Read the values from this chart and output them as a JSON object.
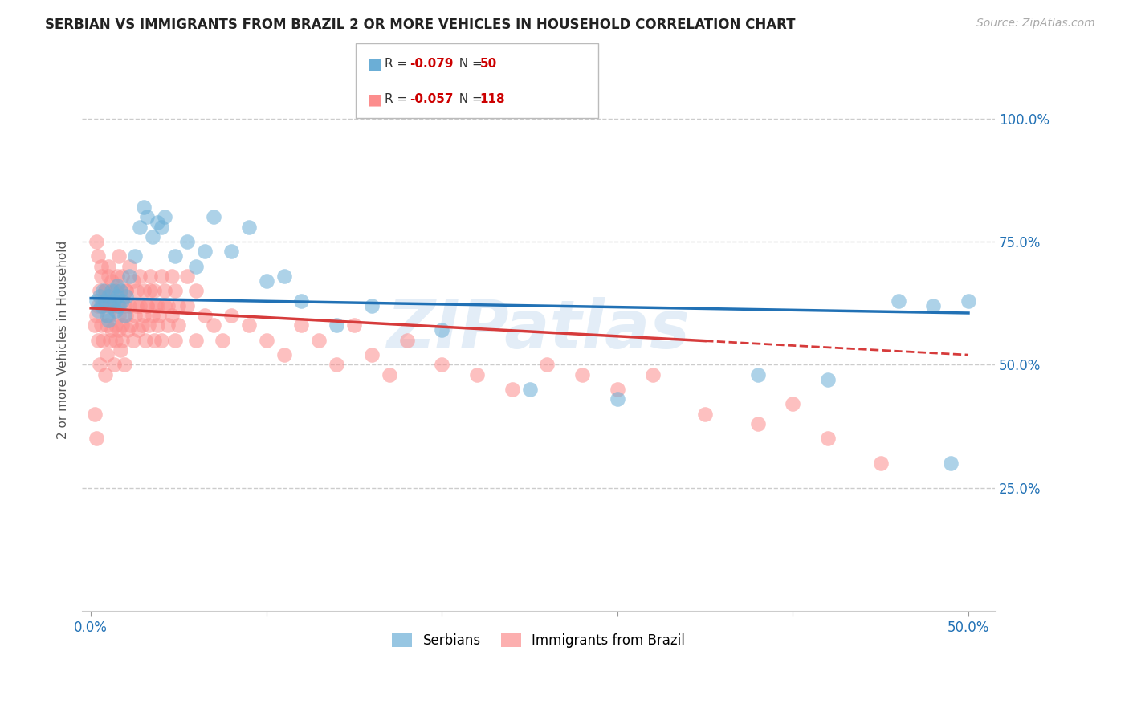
{
  "title": "SERBIAN VS IMMIGRANTS FROM BRAZIL 2 OR MORE VEHICLES IN HOUSEHOLD CORRELATION CHART",
  "source": "Source: ZipAtlas.com",
  "ylabel": "2 or more Vehicles in Household",
  "xlim": [
    0.0,
    0.5
  ],
  "ylim": [
    0.0,
    1.05
  ],
  "xtick_values": [
    0.0,
    0.1,
    0.2,
    0.3,
    0.4,
    0.5
  ],
  "xtick_labels": [
    "0.0%",
    "",
    "",
    "",
    "",
    "50.0%"
  ],
  "ytick_values": [
    0.25,
    0.5,
    0.75,
    1.0
  ],
  "ytick_labels": [
    "25.0%",
    "50.0%",
    "75.0%",
    "100.0%"
  ],
  "serbian_color": "#6baed6",
  "brazil_color": "#fc8d8d",
  "trendline_serbian_color": "#2171b5",
  "trendline_brazil_color": "#d63b3b",
  "watermark": "ZIPatlas",
  "legend_serbian_text": "R = -0.079   N = 50",
  "legend_brazil_text": "R = -0.057   N = 118",
  "serbian_x": [
    0.003,
    0.004,
    0.005,
    0.006,
    0.007,
    0.008,
    0.009,
    0.01,
    0.011,
    0.012,
    0.013,
    0.014,
    0.015,
    0.016,
    0.017,
    0.018,
    0.019,
    0.02,
    0.022,
    0.025,
    0.028,
    0.03,
    0.032,
    0.035,
    0.038,
    0.04,
    0.042,
    0.048,
    0.055,
    0.06,
    0.065,
    0.07,
    0.08,
    0.09,
    0.1,
    0.11,
    0.12,
    0.14,
    0.16,
    0.2,
    0.25,
    0.3,
    0.38,
    0.42,
    0.46,
    0.48,
    0.49,
    0.5,
    0.01,
    0.015
  ],
  "serbian_y": [
    0.63,
    0.61,
    0.64,
    0.62,
    0.65,
    0.63,
    0.6,
    0.64,
    0.62,
    0.65,
    0.63,
    0.61,
    0.64,
    0.62,
    0.65,
    0.63,
    0.6,
    0.64,
    0.68,
    0.72,
    0.78,
    0.82,
    0.8,
    0.76,
    0.79,
    0.78,
    0.8,
    0.72,
    0.75,
    0.7,
    0.73,
    0.8,
    0.73,
    0.78,
    0.67,
    0.68,
    0.63,
    0.58,
    0.62,
    0.57,
    0.45,
    0.43,
    0.48,
    0.47,
    0.63,
    0.62,
    0.3,
    0.63,
    0.59,
    0.66
  ],
  "brazil_x": [
    0.002,
    0.003,
    0.003,
    0.004,
    0.004,
    0.005,
    0.005,
    0.006,
    0.006,
    0.007,
    0.007,
    0.008,
    0.008,
    0.009,
    0.009,
    0.01,
    0.01,
    0.011,
    0.011,
    0.012,
    0.012,
    0.013,
    0.013,
    0.014,
    0.014,
    0.015,
    0.015,
    0.016,
    0.016,
    0.017,
    0.017,
    0.018,
    0.018,
    0.019,
    0.019,
    0.02,
    0.02,
    0.021,
    0.022,
    0.023,
    0.024,
    0.025,
    0.026,
    0.027,
    0.028,
    0.029,
    0.03,
    0.031,
    0.032,
    0.033,
    0.034,
    0.035,
    0.036,
    0.037,
    0.038,
    0.039,
    0.04,
    0.042,
    0.044,
    0.046,
    0.048,
    0.05,
    0.055,
    0.06,
    0.065,
    0.07,
    0.075,
    0.08,
    0.09,
    0.1,
    0.11,
    0.12,
    0.13,
    0.14,
    0.15,
    0.16,
    0.17,
    0.18,
    0.2,
    0.22,
    0.24,
    0.26,
    0.28,
    0.3,
    0.32,
    0.35,
    0.38,
    0.4,
    0.42,
    0.45,
    0.004,
    0.006,
    0.008,
    0.01,
    0.012,
    0.014,
    0.016,
    0.018,
    0.02,
    0.022,
    0.024,
    0.026,
    0.028,
    0.03,
    0.032,
    0.034,
    0.036,
    0.038,
    0.04,
    0.042,
    0.044,
    0.046,
    0.048,
    0.05,
    0.055,
    0.06,
    0.002,
    0.003
  ],
  "brazil_y": [
    0.58,
    0.75,
    0.6,
    0.62,
    0.55,
    0.65,
    0.5,
    0.58,
    0.7,
    0.55,
    0.62,
    0.48,
    0.65,
    0.58,
    0.52,
    0.6,
    0.68,
    0.55,
    0.63,
    0.57,
    0.62,
    0.5,
    0.65,
    0.58,
    0.55,
    0.62,
    0.68,
    0.57,
    0.6,
    0.53,
    0.65,
    0.58,
    0.55,
    0.62,
    0.5,
    0.6,
    0.65,
    0.57,
    0.62,
    0.58,
    0.55,
    0.6,
    0.65,
    0.57,
    0.62,
    0.58,
    0.6,
    0.55,
    0.62,
    0.58,
    0.65,
    0.6,
    0.55,
    0.62,
    0.58,
    0.6,
    0.55,
    0.62,
    0.58,
    0.6,
    0.55,
    0.58,
    0.62,
    0.55,
    0.6,
    0.58,
    0.55,
    0.6,
    0.58,
    0.55,
    0.52,
    0.58,
    0.55,
    0.5,
    0.58,
    0.52,
    0.48,
    0.55,
    0.5,
    0.48,
    0.45,
    0.5,
    0.48,
    0.45,
    0.48,
    0.4,
    0.38,
    0.42,
    0.35,
    0.3,
    0.72,
    0.68,
    0.65,
    0.7,
    0.67,
    0.65,
    0.72,
    0.68,
    0.65,
    0.7,
    0.67,
    0.62,
    0.68,
    0.65,
    0.62,
    0.68,
    0.65,
    0.62,
    0.68,
    0.65,
    0.62,
    0.68,
    0.65,
    0.62,
    0.68,
    0.65,
    0.4,
    0.35
  ],
  "trendline_s_x0": 0.0,
  "trendline_s_y0": 0.635,
  "trendline_s_x1": 0.5,
  "trendline_s_y1": 0.605,
  "trendline_b_x0": 0.0,
  "trendline_b_y0": 0.615,
  "trendline_b_x1": 0.5,
  "trendline_b_y1": 0.52,
  "trendline_b_solid_end": 0.35
}
